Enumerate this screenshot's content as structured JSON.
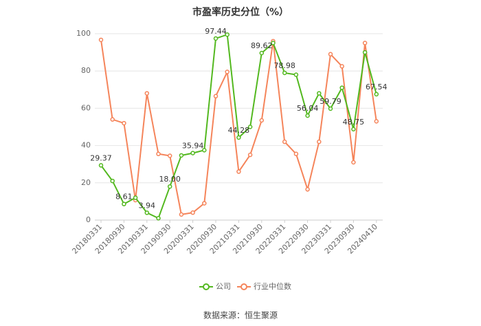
{
  "chart_data": {
    "type": "line",
    "title": "市盈率历史分位（%）",
    "categories": [
      "20180331",
      null,
      "20180930",
      null,
      "20190331",
      null,
      "20190930",
      null,
      "20200331",
      null,
      "20200930",
      null,
      "20210331",
      null,
      "20210930",
      null,
      "20220331",
      null,
      "20220930",
      null,
      "20230331",
      null,
      "20230930",
      null,
      "20240410"
    ],
    "series": [
      {
        "name": "公司",
        "color": "#52b81e",
        "values": [
          29.37,
          21,
          8.61,
          12,
          3.94,
          1,
          18.0,
          34.7,
          35.94,
          37.5,
          97.44,
          99.5,
          44.28,
          50,
          89.62,
          95,
          78.98,
          78,
          56.04,
          68,
          59.79,
          71,
          48.75,
          90,
          67.54
        ],
        "value_labels": [
          "29.37",
          null,
          "8.61",
          null,
          "3.94",
          null,
          "18.00",
          null,
          "35.94",
          null,
          "97.44",
          null,
          "44.28",
          null,
          "89.62",
          null,
          "78.98",
          null,
          "56.04",
          null,
          "59.79",
          null,
          "48.75",
          null,
          "67.54"
        ]
      },
      {
        "name": "行业中位数",
        "color": "#f5845a",
        "values": [
          96.7,
          54,
          52,
          10.7,
          68,
          35.5,
          34.5,
          3,
          4,
          9,
          66.5,
          79.5,
          26,
          35,
          53.5,
          96,
          42,
          35.5,
          16.5,
          42,
          89,
          82.5,
          31,
          95,
          53
        ]
      }
    ],
    "ylim": [
      0,
      100
    ],
    "yticks": [
      0,
      20,
      40,
      60,
      80,
      100
    ],
    "grid": true,
    "source": "数据来源：恒生聚源"
  }
}
